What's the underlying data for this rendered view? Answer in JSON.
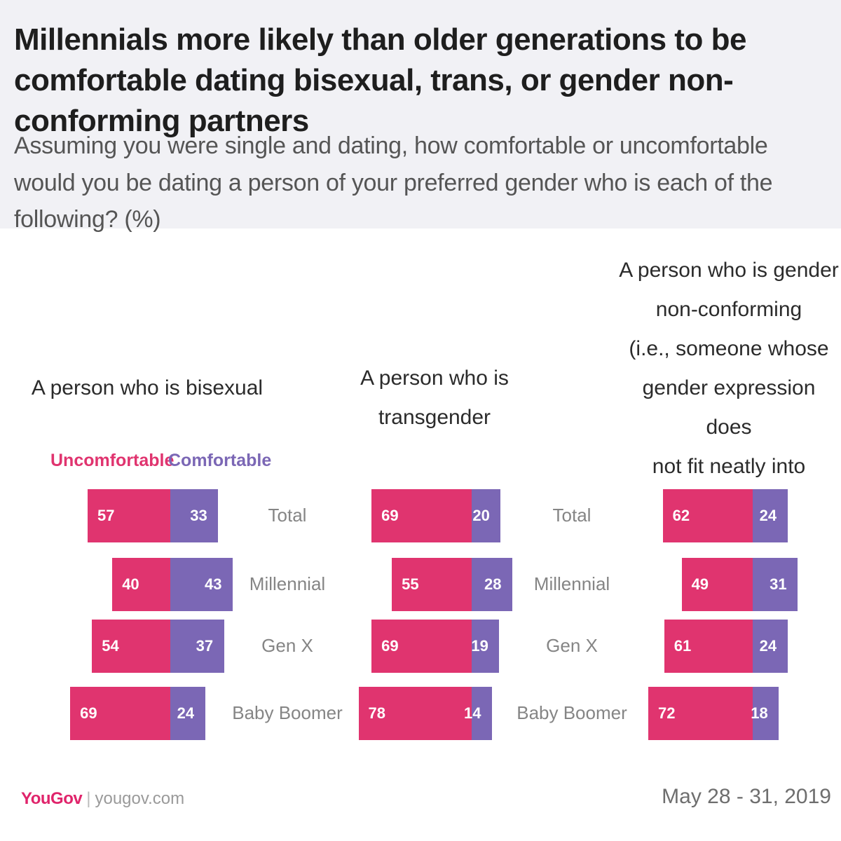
{
  "title": "Millennials more likely than older generations to be comfortable dating bisexual, trans, or gender non-conforming partners",
  "subtitle": "Assuming you were single and dating, how comfortable or uncomfortable would you be dating a person of your preferred gender who is each of the following? (%)",
  "legend": {
    "uncomfortable": "Uncomfortable",
    "comfortable": "Comfortable"
  },
  "colors": {
    "uncomfortable": "#e0346f",
    "comfortable": "#7b67b5"
  },
  "footer": {
    "brand": "YouGov",
    "separator": "|",
    "url": "yougov.com",
    "date": "May 28 - 31, 2019"
  },
  "chart_data": [
    {
      "type": "bar",
      "title": "A person who is bisexual",
      "categories": [
        "Total",
        "Millennial",
        "Gen X",
        "Baby Boomer"
      ],
      "series": [
        {
          "name": "Uncomfortable",
          "values": [
            57,
            40,
            54,
            69
          ]
        },
        {
          "name": "Comfortable",
          "values": [
            33,
            43,
            37,
            24
          ]
        }
      ]
    },
    {
      "type": "bar",
      "title": "A person who is transgender",
      "categories": [
        "Total",
        "Millennial",
        "Gen X",
        "Baby Boomer"
      ],
      "series": [
        {
          "name": "Uncomfortable",
          "values": [
            69,
            55,
            69,
            78
          ]
        },
        {
          "name": "Comfortable",
          "values": [
            20,
            28,
            19,
            14
          ]
        }
      ]
    },
    {
      "type": "bar",
      "title": "A person who is gender non-conforming (i.e., someone whose gender expression does not fit neatly into a category)",
      "categories": [
        "Total",
        "Millennial",
        "Gen X",
        "Baby Boomer"
      ],
      "series": [
        {
          "name": "Uncomfortable",
          "values": [
            62,
            49,
            61,
            72
          ]
        },
        {
          "name": "Comfortable",
          "values": [
            24,
            31,
            24,
            18
          ]
        }
      ]
    }
  ]
}
